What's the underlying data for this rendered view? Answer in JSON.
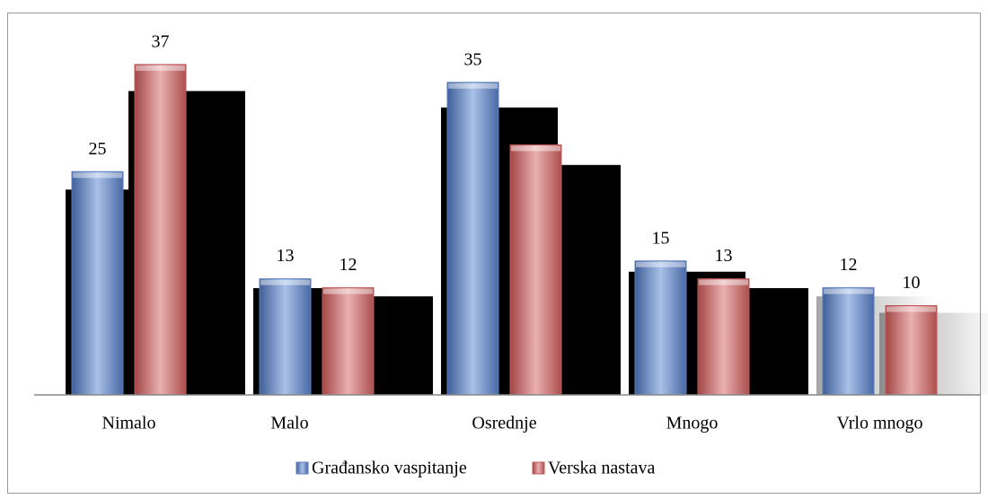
{
  "chart_data": {
    "type": "bar",
    "categories": [
      "Nimalo",
      "Malo",
      "Osrednje",
      "Mnogo",
      "Vrlo mnogo"
    ],
    "series": [
      {
        "name": "Građansko vaspitanje",
        "color": "#5b7fbf",
        "values": [
          25,
          13,
          35,
          15,
          12
        ],
        "value_labels": [
          25,
          13,
          35,
          15,
          12
        ]
      },
      {
        "name": "Verska nastava",
        "color": "#c05a5a",
        "values": [
          37,
          12,
          28,
          13,
          10
        ],
        "value_labels": [
          37,
          12,
          null,
          13,
          10
        ]
      }
    ],
    "legend": "bottom"
  }
}
